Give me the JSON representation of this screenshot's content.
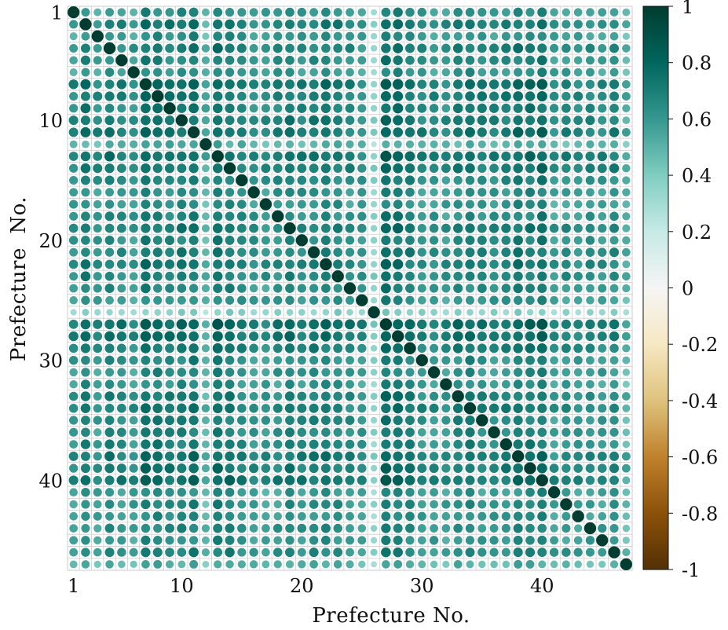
{
  "chart_data": {
    "type": "heatmap",
    "subtype": "correlation-matrix-dots",
    "title": "",
    "xlabel": "Prefecture No.",
    "ylabel": "Prefecture  No.",
    "n": 47,
    "x_ticks": [
      1,
      10,
      20,
      30,
      40
    ],
    "y_ticks": [
      1,
      10,
      20,
      30,
      40
    ],
    "colorbar": {
      "range": [
        -1,
        1
      ],
      "ticks": [
        1,
        0.8,
        0.6,
        0.4,
        0.2,
        0,
        -0.2,
        -0.4,
        -0.6,
        -0.8,
        -1
      ],
      "colormap": "BrBG",
      "stops": [
        "#543005",
        "#8c510a",
        "#bf812d",
        "#dfc27d",
        "#f6e8c3",
        "#f5f5f5",
        "#c7eae5",
        "#80cdc1",
        "#35978f",
        "#01665e",
        "#003c30"
      ]
    },
    "grid": true,
    "row_strength": [
      0.55,
      0.72,
      0.55,
      0.68,
      0.62,
      0.55,
      0.8,
      0.75,
      0.7,
      0.74,
      0.78,
      0.38,
      0.8,
      0.74,
      0.65,
      0.58,
      0.55,
      0.6,
      0.7,
      0.62,
      0.68,
      0.72,
      0.68,
      0.6,
      0.55,
      0.2,
      0.85,
      0.82,
      0.7,
      0.6,
      0.58,
      0.55,
      0.68,
      0.72,
      0.65,
      0.62,
      0.65,
      0.76,
      0.74,
      0.8,
      0.52,
      0.58,
      0.55,
      0.58,
      0.55,
      0.62,
      0.38
    ],
    "diagonal": 1
  }
}
